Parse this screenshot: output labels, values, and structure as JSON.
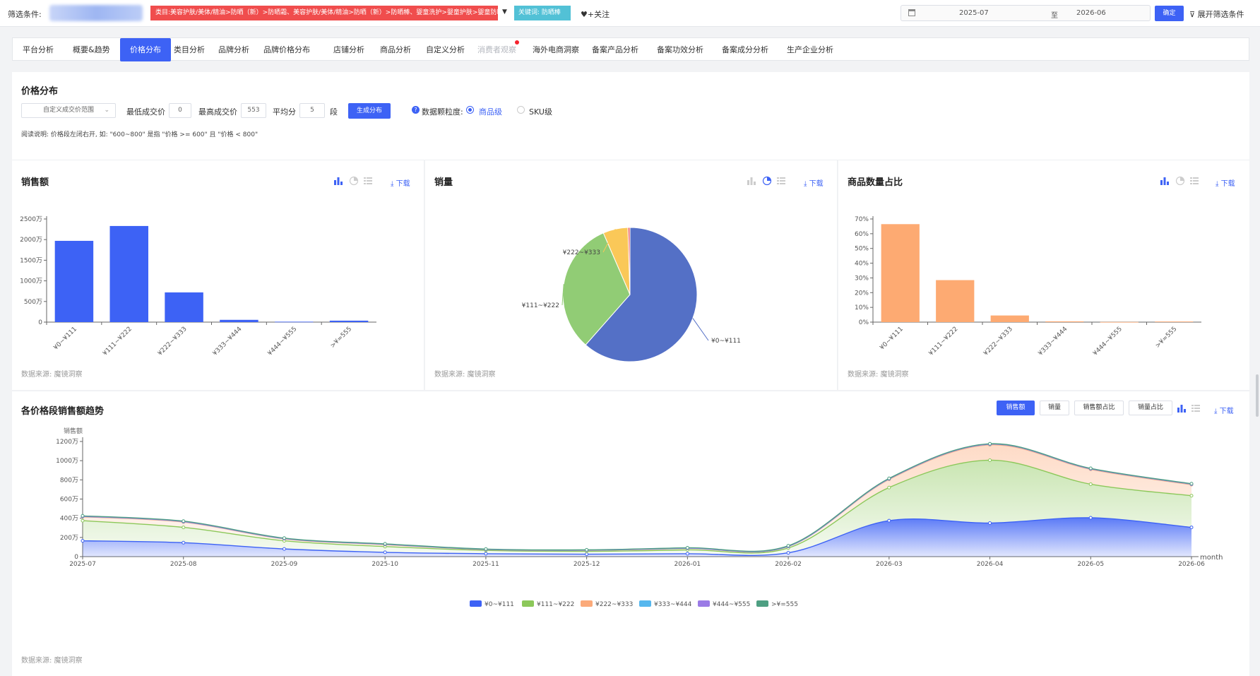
{
  "filter_bar": {
    "label": "筛选条件:",
    "category_tag": "类目:美容护肤/美体/精油>防晒（新）>防晒霜、美容护肤/美体/精油>防晒（新）>防晒棒、婴童洗护>婴童护肤>婴童防晒",
    "keyword_tag": "关键词: 防晒棒",
    "follow": "♥+关注",
    "date_start": "2025-07",
    "date_sep": "至",
    "date_end": "2026-06",
    "confirm": "确定",
    "expand": "展开筛选条件"
  },
  "tabs": [
    {
      "label": "平台分析",
      "active": false,
      "muted": false,
      "dot": false
    },
    {
      "label": "概要&趋势",
      "active": false,
      "muted": false,
      "dot": false
    },
    {
      "label": "价格分布",
      "active": true,
      "muted": false,
      "dot": false
    },
    {
      "label": "类目分析",
      "active": false,
      "muted": false,
      "dot": false
    },
    {
      "label": "品牌分析",
      "active": false,
      "muted": false,
      "dot": false
    },
    {
      "label": "品牌价格分布",
      "active": false,
      "muted": false,
      "dot": false
    },
    {
      "label": "店铺分析",
      "active": false,
      "muted": false,
      "dot": false
    },
    {
      "label": "商品分析",
      "active": false,
      "muted": false,
      "dot": false
    },
    {
      "label": "自定义分析",
      "active": false,
      "muted": false,
      "dot": false
    },
    {
      "label": "消费者观察",
      "active": false,
      "muted": true,
      "dot": true
    },
    {
      "label": "海外电商洞察",
      "active": false,
      "muted": false,
      "dot": false
    },
    {
      "label": "备案产品分析",
      "active": false,
      "muted": false,
      "dot": false
    },
    {
      "label": "备案功效分析",
      "active": false,
      "muted": false,
      "dot": false
    },
    {
      "label": "备案成分分析",
      "active": false,
      "muted": false,
      "dot": false
    },
    {
      "label": "生产企业分析",
      "active": false,
      "muted": false,
      "dot": false
    }
  ],
  "price_panel": {
    "title": "价格分布",
    "range_select": "自定义成交价范围",
    "min_label": "最低成交价",
    "min_value": "0",
    "max_label": "最高成交价",
    "max_value": "553",
    "avg_label": "平均分",
    "segments_value": "5",
    "segments_unit": "段",
    "generate": "生成分布",
    "granularity_label": "数据颗粒度:",
    "option_product": "商品级",
    "option_sku": "SKU级",
    "note": "阅读说明: 价格段左闭右开, 如: \"600~800\" 是指 \"价格 >= 600\" 且 \"价格 < 800\""
  },
  "common": {
    "download": "下载",
    "source": "数据来源: 魔镜洞察"
  },
  "sales_panel": {
    "title": "销售额"
  },
  "volume_panel": {
    "title": "销量"
  },
  "share_panel": {
    "title": "商品数量占比"
  },
  "trend_panel": {
    "title": "各价格段销售额趋势",
    "metric_buttons": [
      "销售额",
      "销量",
      "销售额占比",
      "销量占比"
    ]
  },
  "colors": {
    "primary": "#3d62f5",
    "series": [
      "#3d62f5",
      "#8cc85a",
      "#fbaa7a",
      "#56b7ee",
      "#9b7be6",
      "#4e9f82"
    ],
    "pie": [
      "#5470c6",
      "#91cc75",
      "#fac858"
    ],
    "share_bar": "#fdaa72"
  },
  "chart_data": [
    {
      "type": "bar",
      "title": "销售额",
      "categories": [
        "¥0~¥111",
        "¥111~¥222",
        "¥222~¥333",
        "¥333~¥444",
        "¥444~¥555",
        ">¥=555"
      ],
      "values": [
        1970,
        2330,
        720,
        55,
        10,
        35
      ],
      "yticks": [
        "0",
        "500万",
        "1000万",
        "1500万",
        "2000万",
        "2500万"
      ],
      "ylim": [
        0,
        2500
      ]
    },
    {
      "type": "pie",
      "title": "销量",
      "slices": [
        {
          "label": "¥0~¥111",
          "value": 61.5
        },
        {
          "label": "¥111~¥222",
          "value": 32
        },
        {
          "label": "¥222~¥333",
          "value": 6
        },
        {
          "label": "",
          "value": 0.5
        }
      ]
    },
    {
      "type": "bar",
      "title": "商品数量占比",
      "categories": [
        "¥0~¥111",
        "¥111~¥222",
        "¥222~¥333",
        "¥333~¥444",
        "¥444~¥555",
        ">¥=555"
      ],
      "values": [
        66.5,
        28.5,
        4.5,
        0.5,
        0.1,
        0.4
      ],
      "yticks": [
        "0%",
        "10%",
        "20%",
        "30%",
        "40%",
        "50%",
        "60%",
        "70%"
      ],
      "ylim": [
        0,
        70
      ]
    },
    {
      "type": "area",
      "title": "各价格段销售额趋势",
      "ylabel": "销售额",
      "xlabel": "month",
      "x": [
        "2025-07",
        "2025-08",
        "2025-09",
        "2025-10",
        "2025-11",
        "2025-12",
        "2026-01",
        "2026-02",
        "2026-03",
        "2026-04",
        "2026-05",
        "2026-06"
      ],
      "yticks": [
        "0",
        "200万",
        "400万",
        "600万",
        "800万",
        "1000万",
        "1200万"
      ],
      "ylim": [
        0,
        1200
      ],
      "stacked": true,
      "series": [
        {
          "name": "¥0~¥111",
          "values": [
            165,
            145,
            80,
            45,
            30,
            25,
            30,
            40,
            375,
            350,
            405,
            305
          ]
        },
        {
          "name": "¥111~¥222",
          "values": [
            210,
            160,
            85,
            60,
            35,
            30,
            40,
            50,
            345,
            655,
            350,
            330
          ]
        },
        {
          "name": "¥222~¥333",
          "values": [
            40,
            55,
            20,
            20,
            8,
            10,
            15,
            15,
            85,
            160,
            155,
            115
          ]
        },
        {
          "name": "¥333~¥444",
          "values": [
            4,
            4,
            3,
            3,
            2,
            2,
            2,
            2,
            5,
            6,
            5,
            5
          ]
        },
        {
          "name": "¥444~¥555",
          "values": [
            1,
            1,
            1,
            1,
            1,
            1,
            1,
            1,
            1,
            1,
            1,
            1
          ]
        },
        {
          "name": ">¥=555",
          "values": [
            5,
            5,
            4,
            4,
            3,
            3,
            4,
            5,
            4,
            4,
            4,
            4
          ]
        }
      ]
    }
  ]
}
